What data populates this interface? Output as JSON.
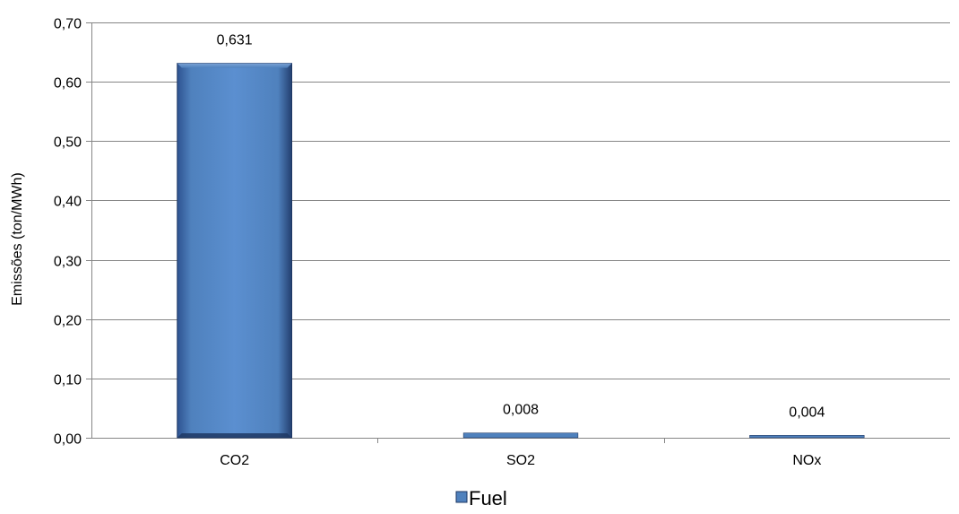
{
  "chart_data": {
    "type": "bar",
    "categories": [
      "CO2",
      "SO2",
      "NOx"
    ],
    "series": [
      {
        "name": "Fuel",
        "values": [
          0.631,
          0.008,
          0.004
        ],
        "data_labels": [
          "0,631",
          "0,008",
          "0,004"
        ],
        "color": "#4F81BD"
      }
    ],
    "title": "",
    "xlabel": "",
    "ylabel": "Emissões (ton/MWh)",
    "ylim": [
      0,
      0.7
    ],
    "yticks": [
      0,
      0.1,
      0.2,
      0.3,
      0.4,
      0.5,
      0.6,
      0.7
    ],
    "ytick_labels": [
      "0,00",
      "0,10",
      "0,20",
      "0,30",
      "0,40",
      "0,50",
      "0,60",
      "0,70"
    ],
    "grid": true,
    "legend_position": "bottom"
  },
  "colors": {
    "bar_fill": "#4F81BD",
    "bar_dark": "#1F3864",
    "grid": "#868686",
    "axis": "#868686"
  }
}
